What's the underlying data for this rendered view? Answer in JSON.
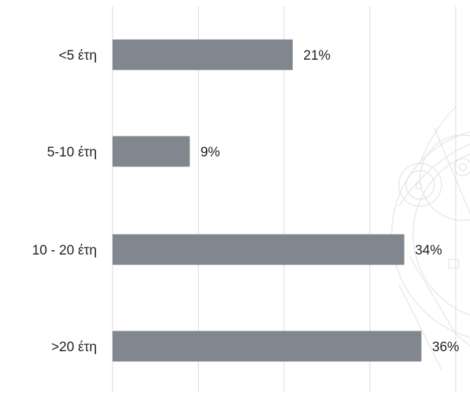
{
  "chart_data": {
    "type": "bar",
    "orientation": "horizontal",
    "categories": [
      "<5 έτη",
      "5-10 έτη",
      "10 - 20 έτη",
      ">20 έτη"
    ],
    "values": [
      21,
      9,
      34,
      36
    ],
    "data_labels": [
      "21%",
      "9%",
      "34%",
      "36%"
    ],
    "value_unit": "%",
    "xlim": [
      0,
      40
    ],
    "x_gridlines": [
      0,
      10,
      20,
      30,
      40
    ],
    "grid": true,
    "legend": "none",
    "title": "",
    "xlabel": "",
    "ylabel": ""
  },
  "colors": {
    "bar": "#82868f",
    "gridline": "#d9d9d9",
    "text": "#1f1f1f",
    "watermark": "#c9ccd1"
  },
  "watermark_icon": "ornamental-seal-watermark"
}
